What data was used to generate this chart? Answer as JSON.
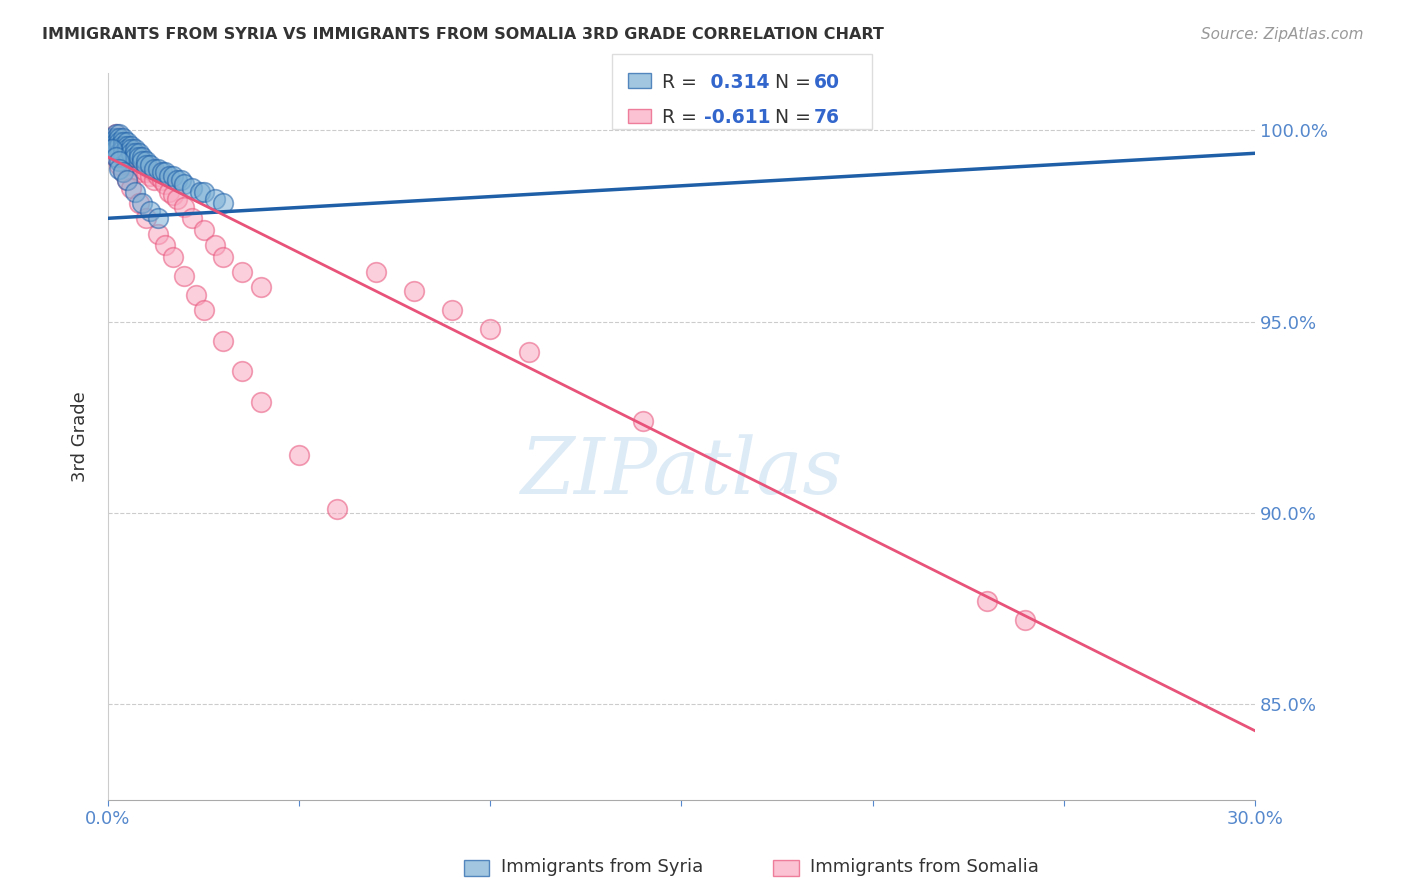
{
  "title": "IMMIGRANTS FROM SYRIA VS IMMIGRANTS FROM SOMALIA 3RD GRADE CORRELATION CHART",
  "source": "Source: ZipAtlas.com",
  "ylabel": "3rd Grade",
  "xlim": [
    0.0,
    0.3
  ],
  "ylim": [
    0.825,
    1.015
  ],
  "ytick_positions": [
    1.0,
    0.95,
    0.9,
    0.85
  ],
  "ytick_labels": [
    "100.0%",
    "95.0%",
    "90.0%",
    "85.0%"
  ],
  "xtick_positions": [
    0.0,
    0.05,
    0.1,
    0.15,
    0.2,
    0.25,
    0.3
  ],
  "xtick_labels": [
    "0.0%",
    "",
    "",
    "",
    "",
    "",
    "30.0%"
  ],
  "legend_R_syria": "0.314",
  "legend_N_syria": "60",
  "legend_R_somalia": "-0.611",
  "legend_N_somalia": "76",
  "color_syria": "#7BAFD4",
  "color_somalia": "#F9A8C0",
  "trendline_syria_color": "#1E5FA8",
  "trendline_somalia_color": "#E8537A",
  "background_color": "#FFFFFF",
  "syria_trendline_x": [
    0.0,
    0.3
  ],
  "syria_trendline_y": [
    0.977,
    0.994
  ],
  "somalia_trendline_x": [
    0.0,
    0.3
  ],
  "somalia_trendline_y": [
    0.993,
    0.843
  ],
  "syria_x": [
    0.001,
    0.001,
    0.001,
    0.002,
    0.002,
    0.002,
    0.002,
    0.002,
    0.003,
    0.003,
    0.003,
    0.003,
    0.003,
    0.004,
    0.004,
    0.004,
    0.004,
    0.004,
    0.004,
    0.005,
    0.005,
    0.005,
    0.005,
    0.006,
    0.006,
    0.006,
    0.007,
    0.007,
    0.007,
    0.008,
    0.008,
    0.009,
    0.009,
    0.01,
    0.01,
    0.011,
    0.012,
    0.013,
    0.014,
    0.015,
    0.016,
    0.017,
    0.018,
    0.019,
    0.02,
    0.022,
    0.024,
    0.025,
    0.028,
    0.03,
    0.001,
    0.002,
    0.003,
    0.003,
    0.004,
    0.005,
    0.007,
    0.009,
    0.011,
    0.013
  ],
  "syria_y": [
    0.998,
    0.997,
    0.996,
    0.999,
    0.998,
    0.997,
    0.996,
    0.995,
    0.999,
    0.998,
    0.997,
    0.996,
    0.994,
    0.998,
    0.997,
    0.996,
    0.995,
    0.994,
    0.993,
    0.997,
    0.996,
    0.995,
    0.994,
    0.996,
    0.995,
    0.994,
    0.995,
    0.994,
    0.993,
    0.994,
    0.993,
    0.993,
    0.992,
    0.992,
    0.991,
    0.991,
    0.99,
    0.99,
    0.989,
    0.989,
    0.988,
    0.988,
    0.987,
    0.987,
    0.986,
    0.985,
    0.984,
    0.984,
    0.982,
    0.981,
    0.995,
    0.993,
    0.992,
    0.99,
    0.989,
    0.987,
    0.984,
    0.981,
    0.979,
    0.977
  ],
  "somalia_x": [
    0.001,
    0.001,
    0.001,
    0.002,
    0.002,
    0.002,
    0.002,
    0.003,
    0.003,
    0.003,
    0.003,
    0.003,
    0.004,
    0.004,
    0.004,
    0.004,
    0.005,
    0.005,
    0.005,
    0.005,
    0.006,
    0.006,
    0.006,
    0.007,
    0.007,
    0.007,
    0.008,
    0.008,
    0.008,
    0.009,
    0.009,
    0.01,
    0.01,
    0.011,
    0.011,
    0.012,
    0.012,
    0.013,
    0.014,
    0.015,
    0.016,
    0.017,
    0.018,
    0.02,
    0.022,
    0.025,
    0.028,
    0.03,
    0.035,
    0.04,
    0.002,
    0.003,
    0.004,
    0.005,
    0.006,
    0.008,
    0.01,
    0.013,
    0.015,
    0.017,
    0.02,
    0.023,
    0.025,
    0.03,
    0.035,
    0.04,
    0.05,
    0.06,
    0.07,
    0.08,
    0.09,
    0.1,
    0.11,
    0.14,
    0.23,
    0.24
  ],
  "somalia_y": [
    0.998,
    0.997,
    0.995,
    0.999,
    0.998,
    0.997,
    0.994,
    0.998,
    0.997,
    0.996,
    0.994,
    0.993,
    0.997,
    0.996,
    0.994,
    0.993,
    0.996,
    0.995,
    0.993,
    0.991,
    0.995,
    0.993,
    0.991,
    0.994,
    0.993,
    0.991,
    0.993,
    0.991,
    0.989,
    0.992,
    0.99,
    0.991,
    0.989,
    0.99,
    0.988,
    0.989,
    0.987,
    0.988,
    0.987,
    0.986,
    0.984,
    0.983,
    0.982,
    0.98,
    0.977,
    0.974,
    0.97,
    0.967,
    0.963,
    0.959,
    0.993,
    0.991,
    0.989,
    0.987,
    0.985,
    0.981,
    0.977,
    0.973,
    0.97,
    0.967,
    0.962,
    0.957,
    0.953,
    0.945,
    0.937,
    0.929,
    0.915,
    0.901,
    0.963,
    0.958,
    0.953,
    0.948,
    0.942,
    0.924,
    0.877,
    0.872
  ]
}
